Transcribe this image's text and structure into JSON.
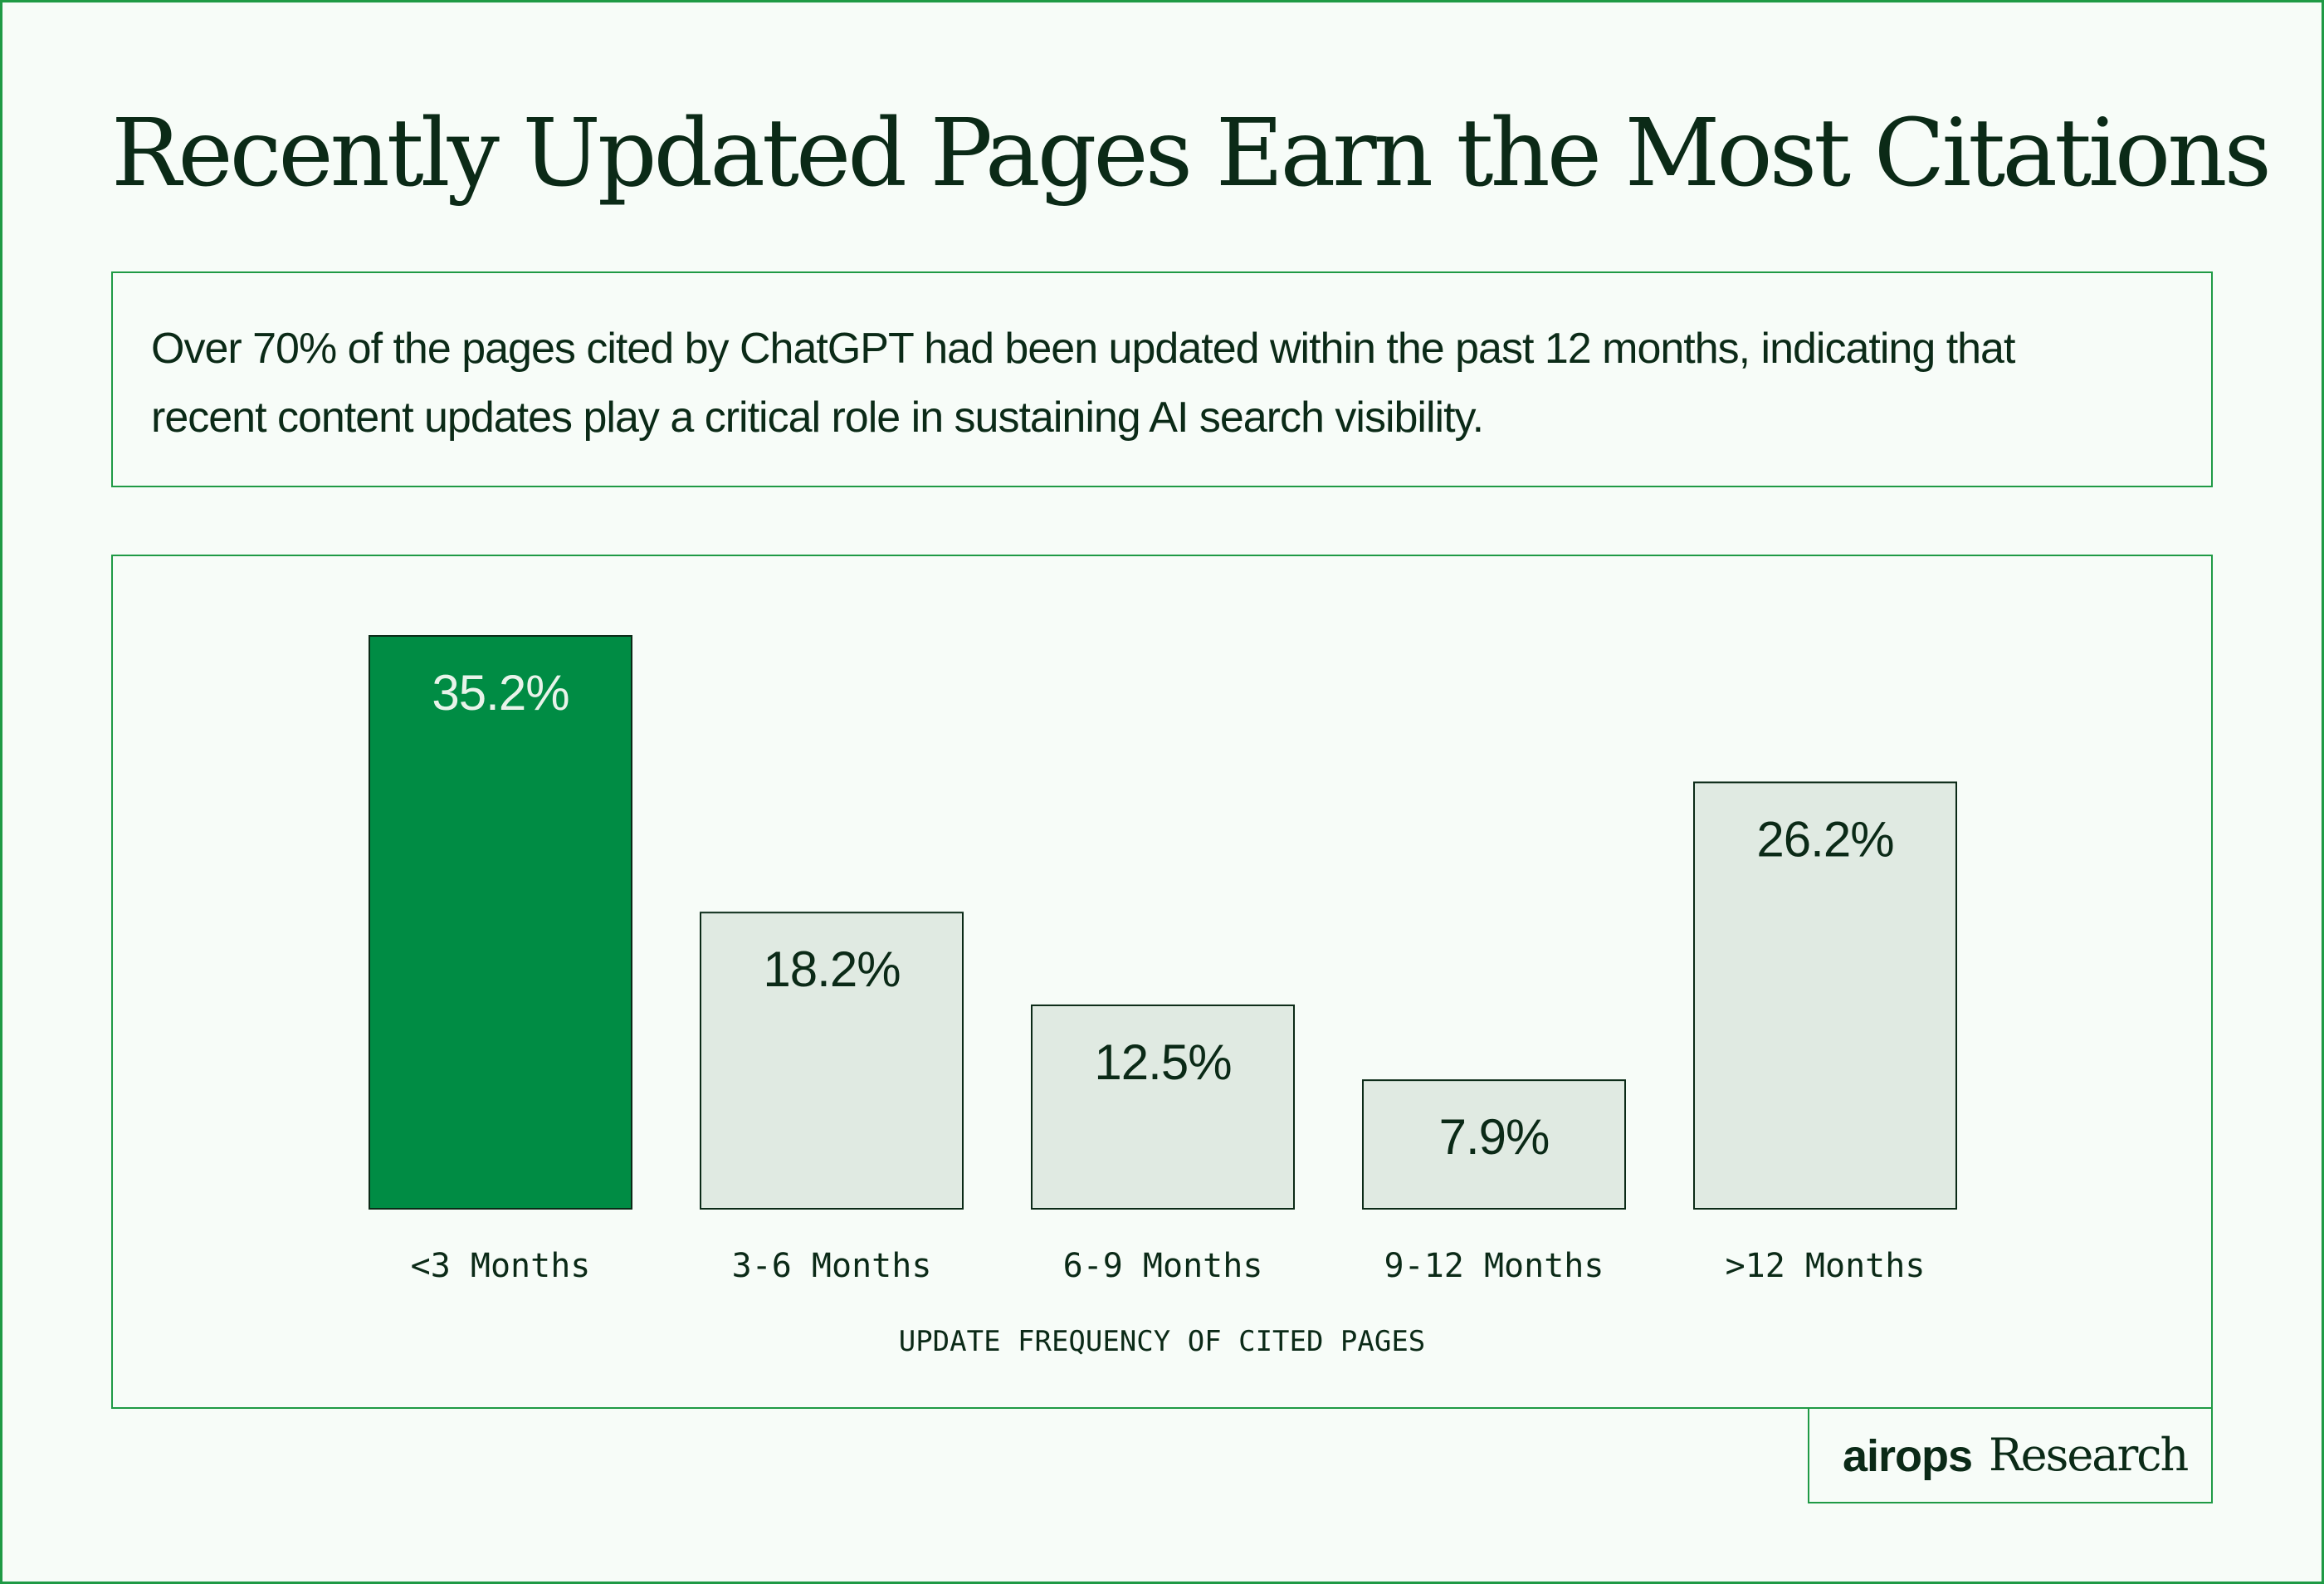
{
  "header": {
    "title": "Recently Updated Pages Earn the Most Citations"
  },
  "summary": {
    "text": "Over 70% of the pages cited by ChatGPT had been updated within the past 12 months, indicating that recent content updates play a critical role in sustaining AI search visibility."
  },
  "chart_data": {
    "type": "bar",
    "categories": [
      "<3 Months",
      "3-6 Months",
      "6-9 Months",
      "9-12 Months",
      ">12 Months"
    ],
    "values": [
      35.2,
      18.2,
      12.5,
      7.9,
      26.2
    ],
    "data_labels": [
      "35.2%",
      "18.2%",
      "12.5%",
      "7.9%",
      "26.2%"
    ],
    "xlabel": "UPDATE FREQUENCY OF CITED PAGES",
    "ylabel": "",
    "ylim": [
      0,
      35.2
    ],
    "grid": false,
    "highlight_index": 0,
    "colors": {
      "highlight_fill": "#008c44",
      "bar_fill": "#e0eae2",
      "bar_stroke": "#0b2a17",
      "highlight_label": "#e8f3ea",
      "label": "#0b2a17"
    }
  },
  "footer": {
    "brand": "airops",
    "brand_suffix": "Research"
  }
}
